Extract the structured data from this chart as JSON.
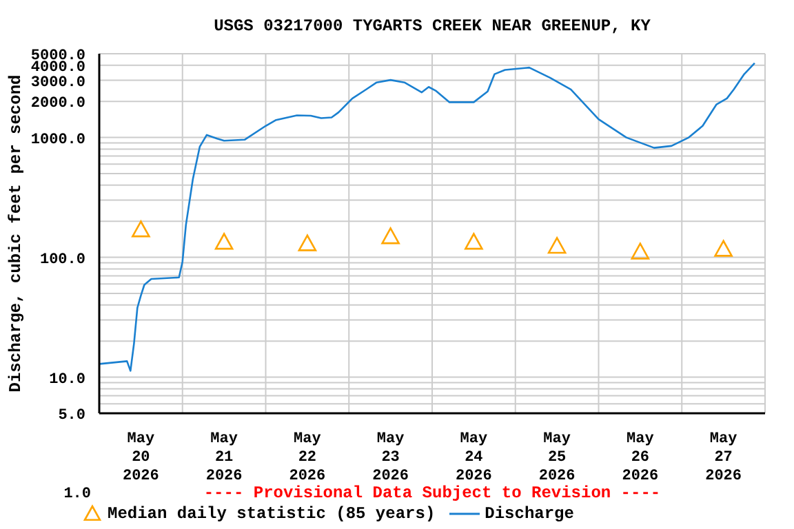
{
  "chart_data": {
    "type": "line",
    "title": "USGS 03217000 TYGARTS CREEK NEAR GREENUP, KY",
    "ylabel": "Discharge, cubic feet per second",
    "annotations": [
      "1.0",
      "---- Provisional Data Subject to Revision ----"
    ],
    "log": "y",
    "grid": true,
    "legend": "bottom",
    "xlim": [
      "2026-05-20T00:00",
      "2026-05-28T00:00"
    ],
    "xticks": [
      {
        "value": "2026-05-20T00:00",
        "label": null
      },
      {
        "value": "2026-05-20T12:00",
        "label": "May\n20\n2026"
      },
      {
        "value": "2026-05-21T00:00",
        "label": null
      },
      {
        "value": "2026-05-21T12:00",
        "label": "May\n21\n2026"
      },
      {
        "value": "2026-05-22T00:00",
        "label": null
      },
      {
        "value": "2026-05-22T12:00",
        "label": "May\n22\n2026"
      },
      {
        "value": "2026-05-23T00:00",
        "label": null
      },
      {
        "value": "2026-05-23T12:00",
        "label": "May\n23\n2026"
      },
      {
        "value": "2026-05-24T00:00",
        "label": null
      },
      {
        "value": "2026-05-24T12:00",
        "label": "May\n24\n2026"
      },
      {
        "value": "2026-05-25T00:00",
        "label": null
      },
      {
        "value": "2026-05-25T12:00",
        "label": "May\n25\n2026"
      },
      {
        "value": "2026-05-26T00:00",
        "label": null
      },
      {
        "value": "2026-05-26T12:00",
        "label": "May\n26\n2026"
      },
      {
        "value": "2026-05-27T00:00",
        "label": null
      },
      {
        "value": "2026-05-27T12:00",
        "label": "May\n27\n2026"
      },
      {
        "value": "2026-05-28T00:00",
        "label": null
      }
    ],
    "ylim": [
      5,
      5000
    ],
    "yticks": [
      {
        "value": 5,
        "label": "5.0"
      },
      {
        "value": 6,
        "label": null
      },
      {
        "value": 7,
        "label": null
      },
      {
        "value": 8,
        "label": null
      },
      {
        "value": 9,
        "label": null
      },
      {
        "value": 10,
        "label": "10.0"
      },
      {
        "value": 20,
        "label": null
      },
      {
        "value": 30,
        "label": null
      },
      {
        "value": 40,
        "label": null
      },
      {
        "value": 50,
        "label": null
      },
      {
        "value": 60,
        "label": null
      },
      {
        "value": 70,
        "label": null
      },
      {
        "value": 80,
        "label": null
      },
      {
        "value": 90,
        "label": null
      },
      {
        "value": 100,
        "label": "100.0"
      },
      {
        "value": 200,
        "label": null
      },
      {
        "value": 300,
        "label": null
      },
      {
        "value": 400,
        "label": null
      },
      {
        "value": 500,
        "label": null
      },
      {
        "value": 600,
        "label": null
      },
      {
        "value": 700,
        "label": null
      },
      {
        "value": 800,
        "label": null
      },
      {
        "value": 900,
        "label": null
      },
      {
        "value": 1000,
        "label": "1000.0"
      },
      {
        "value": 2000,
        "label": "2000.0"
      },
      {
        "value": 3000,
        "label": "3000.0"
      },
      {
        "value": 4000,
        "label": "4000.0"
      },
      {
        "value": 5000,
        "label": "5000.0"
      }
    ],
    "series": [
      {
        "name": "Median daily statistic (85 years)",
        "type": "scatter",
        "marker": "triangle",
        "color": "#ffa500",
        "x": [
          "2026-05-20T12:00",
          "2026-05-21T12:00",
          "2026-05-22T12:00",
          "2026-05-23T12:00",
          "2026-05-24T12:00",
          "2026-05-25T12:00",
          "2026-05-26T12:00",
          "2026-05-27T12:00"
        ],
        "values": [
          170,
          134,
          130,
          149,
          134,
          124,
          111,
          117
        ]
      },
      {
        "name": "Discharge",
        "marker": "none",
        "line_style": "solid",
        "color": "#1a80d0",
        "x": [
          "2026-05-20T00:00",
          "2026-05-20T08:00",
          "2026-05-20T09:00",
          "2026-05-20T10:00",
          "2026-05-20T11:00",
          "2026-05-20T12:00",
          "2026-05-20T13:00",
          "2026-05-20T15:00",
          "2026-05-20T23:00",
          "2026-05-21T00:00",
          "2026-05-21T01:00",
          "2026-05-21T03:00",
          "2026-05-21T05:00",
          "2026-05-21T07:00",
          "2026-05-21T10:00",
          "2026-05-21T12:00",
          "2026-05-21T18:00",
          "2026-05-22T00:00",
          "2026-05-22T03:00",
          "2026-05-22T09:00",
          "2026-05-22T13:00",
          "2026-05-22T16:00",
          "2026-05-22T19:00",
          "2026-05-22T21:00",
          "2026-05-23T01:00",
          "2026-05-23T05:00",
          "2026-05-23T08:00",
          "2026-05-23T12:00",
          "2026-05-23T16:00",
          "2026-05-23T21:00",
          "2026-05-23T23:00",
          "2026-05-24T01:00",
          "2026-05-24T05:00",
          "2026-05-24T12:00",
          "2026-05-24T16:00",
          "2026-05-24T18:00",
          "2026-05-24T21:00",
          "2026-05-25T04:00",
          "2026-05-25T10:00",
          "2026-05-25T16:00",
          "2026-05-26T00:00",
          "2026-05-26T08:00",
          "2026-05-26T16:00",
          "2026-05-26T21:00",
          "2026-05-27T02:00",
          "2026-05-27T06:00",
          "2026-05-27T10:00",
          "2026-05-27T13:00",
          "2026-05-27T15:00",
          "2026-05-27T18:00",
          "2026-05-27T21:00"
        ],
        "values": [
          12.9,
          13.6,
          11.3,
          18.9,
          38,
          48,
          59,
          66,
          68,
          92,
          187,
          450,
          840,
          1050,
          980,
          940,
          960,
          1250,
          1400,
          1530,
          1520,
          1450,
          1470,
          1620,
          2120,
          2520,
          2880,
          3020,
          2880,
          2380,
          2640,
          2460,
          1970,
          1970,
          2420,
          3380,
          3660,
          3830,
          3150,
          2520,
          1420,
          1000,
          820,
          850,
          1000,
          1250,
          1890,
          2120,
          2520,
          3380,
          4180
        ]
      }
    ]
  }
}
